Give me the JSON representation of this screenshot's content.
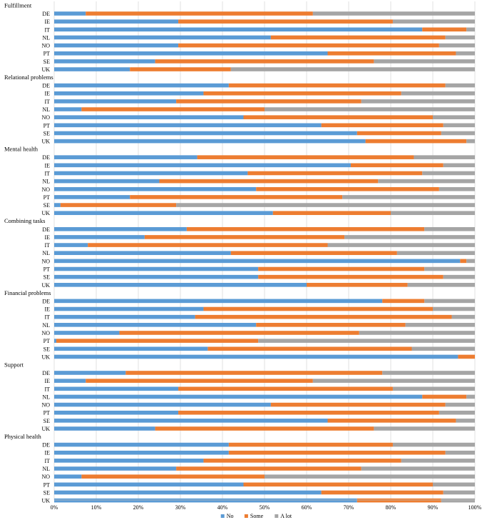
{
  "chart_data": {
    "type": "bar",
    "orientation": "horizontal",
    "stacked": "percent",
    "title": "",
    "xlabel": "",
    "ylabel": "",
    "xlim": [
      0,
      100
    ],
    "x_ticks": [
      "0%",
      "10%",
      "20%",
      "30%",
      "40%",
      "50%",
      "60%",
      "70%",
      "80%",
      "90%",
      "100%"
    ],
    "series": [
      {
        "name": "No",
        "color": "#5b9bd5"
      },
      {
        "name": "Some",
        "color": "#ed7d31"
      },
      {
        "name": "A lot",
        "color": "#a5a5a5"
      }
    ],
    "legend": [
      "No",
      "Some",
      "A lot"
    ],
    "legend_position": "bottom-center",
    "groups": [
      {
        "name": "Fulfillment",
        "rows": [
          {
            "label": "DE",
            "values": [
              7.5,
              54,
              38.5
            ]
          },
          {
            "label": "IE",
            "values": [
              29.5,
              51,
              19.5
            ]
          },
          {
            "label": "IT",
            "values": [
              87.5,
              10.5,
              2
            ]
          },
          {
            "label": "NL",
            "values": [
              51.5,
              41.5,
              7
            ]
          },
          {
            "label": "NO",
            "values": [
              29.5,
              62,
              8.5
            ]
          },
          {
            "label": "PT",
            "values": [
              65,
              30.5,
              4.5
            ]
          },
          {
            "label": "SE",
            "values": [
              24,
              52,
              24
            ]
          },
          {
            "label": "UK",
            "values": [
              18,
              24,
              58
            ]
          }
        ]
      },
      {
        "name": "Relational problems",
        "rows": [
          {
            "label": "DE",
            "values": [
              41.5,
              51.5,
              7
            ]
          },
          {
            "label": "IE",
            "values": [
              35.5,
              47,
              17.5
            ]
          },
          {
            "label": "IT",
            "values": [
              29,
              44,
              27
            ]
          },
          {
            "label": "NL",
            "values": [
              6.5,
              43.5,
              50
            ]
          },
          {
            "label": "NO",
            "values": [
              45,
              45,
              10
            ]
          },
          {
            "label": "PT",
            "values": [
              63.5,
              29,
              7.5
            ]
          },
          {
            "label": "SE",
            "values": [
              72,
              20,
              8
            ]
          },
          {
            "label": "UK",
            "values": [
              74,
              24,
              2
            ]
          }
        ]
      },
      {
        "name": "Mental health",
        "rows": [
          {
            "label": "DE",
            "values": [
              34,
              51.5,
              14.5
            ]
          },
          {
            "label": "IE",
            "values": [
              70.5,
              22,
              7.5
            ]
          },
          {
            "label": "IT",
            "values": [
              46,
              41.5,
              12.5
            ]
          },
          {
            "label": "NL",
            "values": [
              25,
              52,
              23
            ]
          },
          {
            "label": "NO",
            "values": [
              48,
              43.5,
              8.5
            ]
          },
          {
            "label": "PT",
            "values": [
              18,
              50.5,
              31.5
            ]
          },
          {
            "label": "SE",
            "values": [
              1.5,
              27.5,
              71
            ]
          },
          {
            "label": "UK",
            "values": [
              52,
              28,
              20
            ]
          }
        ]
      },
      {
        "name": "Combining tasks",
        "rows": [
          {
            "label": "DE",
            "values": [
              31.5,
              56.5,
              12
            ]
          },
          {
            "label": "IE",
            "values": [
              21.5,
              47.5,
              31
            ]
          },
          {
            "label": "IT",
            "values": [
              8,
              57,
              35
            ]
          },
          {
            "label": "NL",
            "values": [
              42,
              39.5,
              18.5
            ]
          },
          {
            "label": "NO",
            "values": [
              96.5,
              1.5,
              2
            ]
          },
          {
            "label": "PT",
            "values": [
              48.5,
              39.5,
              12
            ]
          },
          {
            "label": "SE",
            "values": [
              48.5,
              44,
              7.5
            ]
          },
          {
            "label": "UK",
            "values": [
              60,
              24,
              16
            ]
          }
        ]
      },
      {
        "name": "Financial problems",
        "rows": [
          {
            "label": "DE",
            "values": [
              78,
              10,
              12
            ]
          },
          {
            "label": "IE",
            "values": [
              35.5,
              54.5,
              10
            ]
          },
          {
            "label": "IT",
            "values": [
              33.5,
              61,
              5.5
            ]
          },
          {
            "label": "NL",
            "values": [
              48,
              35.5,
              16.5
            ]
          },
          {
            "label": "NO",
            "values": [
              15.5,
              57,
              27.5
            ]
          },
          {
            "label": "PT",
            "values": [
              0.5,
              48,
              51.5
            ]
          },
          {
            "label": "SE",
            "values": [
              36.5,
              48.5,
              15
            ]
          },
          {
            "label": "UK",
            "values": [
              96,
              4,
              0
            ]
          }
        ]
      },
      {
        "name": "Support",
        "rows": [
          {
            "label": "DE",
            "values": [
              17,
              61,
              22
            ]
          },
          {
            "label": "IE",
            "values": [
              7.5,
              54,
              38.5
            ]
          },
          {
            "label": "IT",
            "values": [
              29.5,
              51,
              19.5
            ]
          },
          {
            "label": "NL",
            "values": [
              87.5,
              10.5,
              2
            ]
          },
          {
            "label": "NO",
            "values": [
              51.5,
              41.5,
              7
            ]
          },
          {
            "label": "PT",
            "values": [
              29.5,
              62,
              8.5
            ]
          },
          {
            "label": "SE",
            "values": [
              65,
              30.5,
              4.5
            ]
          },
          {
            "label": "UK",
            "values": [
              24,
              52,
              24
            ]
          }
        ]
      },
      {
        "name": "Physical health",
        "rows": [
          {
            "label": "DE",
            "values": [
              41.5,
              39,
              19.5
            ]
          },
          {
            "label": "IE",
            "values": [
              41.5,
              51.5,
              7
            ]
          },
          {
            "label": "IT",
            "values": [
              35.5,
              47,
              17.5
            ]
          },
          {
            "label": "NL",
            "values": [
              29,
              44,
              27
            ]
          },
          {
            "label": "NO",
            "values": [
              6.5,
              43.5,
              50
            ]
          },
          {
            "label": "PT",
            "values": [
              45,
              45,
              10
            ]
          },
          {
            "label": "SE",
            "values": [
              63.5,
              29,
              7.5
            ]
          },
          {
            "label": "UK",
            "values": [
              72,
              20,
              8
            ]
          }
        ]
      }
    ]
  }
}
